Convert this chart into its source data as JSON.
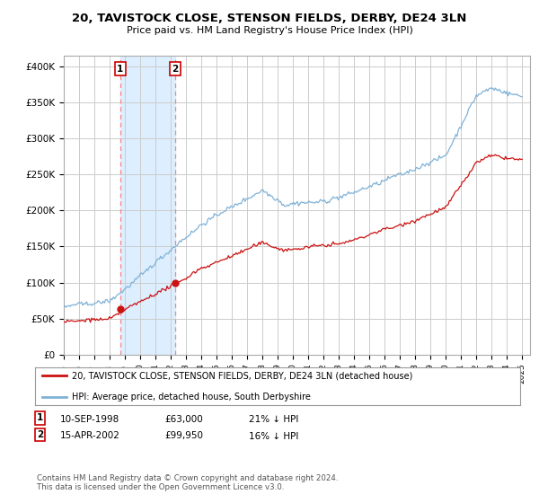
{
  "title": "20, TAVISTOCK CLOSE, STENSON FIELDS, DERBY, DE24 3LN",
  "subtitle": "Price paid vs. HM Land Registry's House Price Index (HPI)",
  "ylabel_ticks": [
    "£0",
    "£50K",
    "£100K",
    "£150K",
    "£200K",
    "£250K",
    "£300K",
    "£350K",
    "£400K"
  ],
  "ytick_values": [
    0,
    50000,
    100000,
    150000,
    200000,
    250000,
    300000,
    350000,
    400000
  ],
  "ylim": [
    0,
    415000
  ],
  "xlim_start": 1995.0,
  "xlim_end": 2025.5,
  "sale1_date": 1998.69,
  "sale1_price": 63000,
  "sale2_date": 2002.29,
  "sale2_price": 99950,
  "hpi_color": "#7fb2d8",
  "price_color": "#cc1111",
  "vline_color": "#ee8888",
  "span_color": "#ddeeff",
  "legend_line1": "20, TAVISTOCK CLOSE, STENSON FIELDS, DERBY, DE24 3LN (detached house)",
  "legend_line2": "HPI: Average price, detached house, South Derbyshire",
  "footer": "Contains HM Land Registry data © Crown copyright and database right 2024.\nThis data is licensed under the Open Government Licence v3.0.",
  "background_color": "#ffffff",
  "grid_color": "#cccccc",
  "xtick_years": [
    1995,
    1996,
    1997,
    1998,
    1999,
    2000,
    2001,
    2002,
    2003,
    2004,
    2005,
    2006,
    2007,
    2008,
    2009,
    2010,
    2011,
    2012,
    2013,
    2014,
    2015,
    2016,
    2017,
    2018,
    2019,
    2020,
    2021,
    2022,
    2023,
    2024,
    2025
  ]
}
